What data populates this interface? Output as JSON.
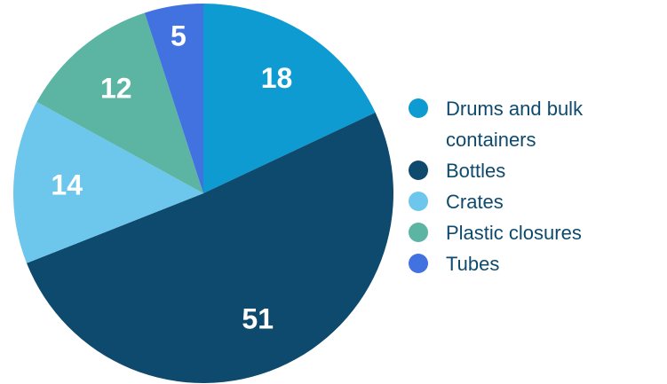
{
  "chart_data": {
    "type": "pie",
    "categories": [
      "Drums and bulk containers",
      "Bottles",
      "Crates",
      "Plastic closures",
      "Tubes"
    ],
    "values": [
      18,
      51,
      14,
      12,
      5
    ],
    "legend_lines": [
      [
        "Drums and bulk",
        "containers"
      ],
      [
        "Bottles"
      ],
      [
        "Crates"
      ],
      [
        "Plastic closures"
      ],
      [
        "Tubes"
      ]
    ],
    "colors": [
      "#0d9bd1",
      "#0e4a6d",
      "#6dc7ec",
      "#5bb5a2",
      "#4272e0"
    ],
    "legend_position": "right",
    "start_angle_deg": 0,
    "direction": "clockwise",
    "data_labels": true
  }
}
